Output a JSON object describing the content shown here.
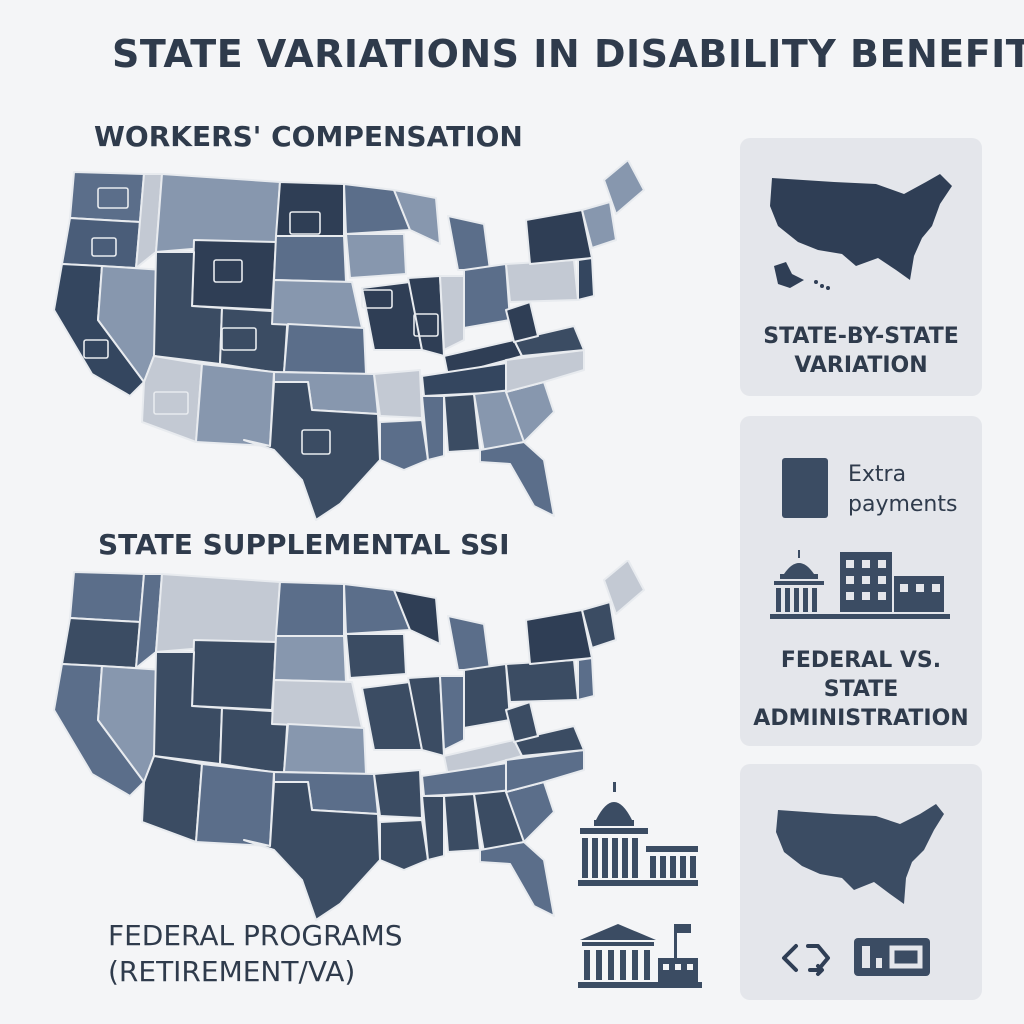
{
  "title": "STATE VARIATIONS IN DISABILITY BENEFITS",
  "sections": {
    "workers_comp": {
      "label": "WORKERS' COMPENSATION",
      "icon": "us-map-states"
    },
    "state_ssi": {
      "label": "STATE SUPPLEMENTAL SSI",
      "icon": "us-map-states"
    },
    "federal": {
      "line1": "FEDERAL PROGRAMS",
      "line2": "(RETIREMENT/VA)",
      "icons": [
        "capitol-building-icon",
        "courthouse-flag-icon"
      ]
    }
  },
  "panels": {
    "variation": {
      "line1": "STATE-BY-STATE",
      "line2": "VARIATION",
      "icon": "us-map-icon"
    },
    "admin": {
      "legend_line1": "Extra",
      "legend_line2": "payments",
      "line1": "FEDERAL VS.",
      "line2": "STATE",
      "line3": "ADMINISTRATION",
      "icon": "government-buildings-icon"
    },
    "federal": {
      "icons": [
        "us-map-icon",
        "exchange-arrows-icon",
        "id-card-icon"
      ]
    }
  },
  "colors": {
    "darkest": "#2f3e55",
    "dark": "#3b4c63",
    "medium": "#5b6e8a",
    "light": "#8797ae",
    "lightest": "#c3c9d3",
    "panel_bg": "#e4e6eb"
  }
}
